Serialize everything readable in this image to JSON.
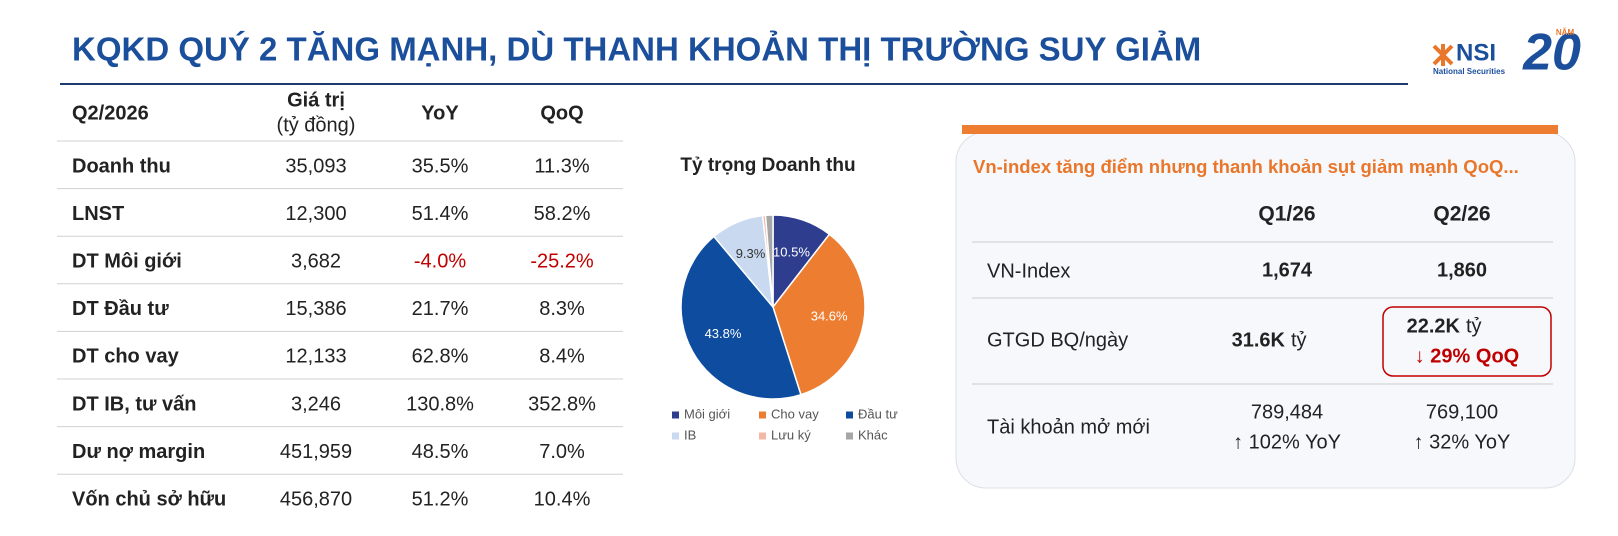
{
  "header": {
    "title": "KQKD QUÝ 2 TĂNG MẠNH, DÙ THANH KHOẢN THỊ TRƯỜNG SUY GIẢM"
  },
  "logo": {
    "brand": "NSI",
    "sub": "National Securities",
    "years": "20",
    "years_label": "NĂM"
  },
  "table": {
    "header": [
      "Q2/2026",
      "Giá trị",
      "YoY",
      "QoQ"
    ],
    "unit": "(tỷ đồng)",
    "rows": [
      [
        "Doanh thu",
        "35,093",
        "35.5%",
        "11.3%"
      ],
      [
        "LNST",
        "12,300",
        "51.4%",
        "58.2%"
      ],
      [
        "DT Môi giới",
        "3,682",
        "-4.0%",
        "-25.2%"
      ],
      [
        "DT Đầu tư",
        "15,386",
        "21.7%",
        "8.3%"
      ],
      [
        "DT cho vay",
        "12,133",
        "62.8%",
        "8.4%"
      ],
      [
        "DT IB, tư vấn",
        "3,246",
        "130.8%",
        "352.8%"
      ],
      [
        "Dư nợ margin",
        "451,959",
        "48.5%",
        "7.0%"
      ],
      [
        "Vốn chủ sở hữu",
        "456,870",
        "51.2%",
        "10.4%"
      ]
    ]
  },
  "chart_data": {
    "type": "pie",
    "title": "Tỷ trọng Doanh thu",
    "categories": [
      "Môi giới",
      "Cho vay",
      "Đầu tư",
      "IB",
      "Lưu ký",
      "Khác"
    ],
    "values": [
      10.5,
      34.6,
      43.8,
      9.3,
      0.5,
      1.3
    ],
    "value_labels": [
      "10.5%",
      "34.6%",
      "43.8%",
      "9.3%",
      null,
      null
    ],
    "colors": [
      "#2f3d8f",
      "#ed7d31",
      "#0d4c9e",
      "#c9daf0",
      "#f4b9a6",
      "#a6a6a6"
    ]
  },
  "panel": {
    "title": "Vn-index tăng điểm nhưng thanh khoản sụt giảm mạnh QoQ...",
    "columns": [
      "Q1/26",
      "Q2/26"
    ],
    "rows": [
      {
        "label": "VN-Index",
        "q1": "1,674",
        "q2": "1,860"
      },
      {
        "label": "GTGD BQ/ngày",
        "q1": "31.6K",
        "q1_unit": "tỷ",
        "q2": "22.2K",
        "q2_unit": "tỷ",
        "q2_change": "↓ 29% QoQ"
      },
      {
        "label": "Tài khoản mở mới",
        "q1": "789,484",
        "q1_change": "↑ 102% YoY",
        "q2": "769,100",
        "q2_change": "↑ 32% YoY"
      }
    ]
  }
}
